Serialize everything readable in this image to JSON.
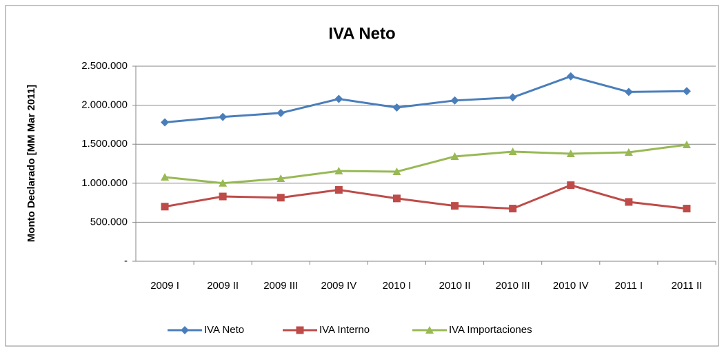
{
  "chart_data": {
    "type": "line",
    "title": "IVA Neto",
    "y_label": "Monto Declarado  [MM Mar 2011]",
    "categories": [
      "2009 I",
      "2009 II",
      "2009 III",
      "2009 IV",
      "2010 I",
      "2010 II",
      "2010 III",
      "2010 IV",
      "2011 I",
      "2011 II"
    ],
    "series": [
      {
        "name": "IVA Neto",
        "color": "#4a7ebb",
        "marker": "diamond",
        "values": [
          1780000,
          1850000,
          1900000,
          2080000,
          1970000,
          2060000,
          2100000,
          2370000,
          2170000,
          2180000
        ]
      },
      {
        "name": "IVA Interno",
        "color": "#be4b48",
        "marker": "square",
        "values": [
          700000,
          830000,
          815000,
          915000,
          805000,
          710000,
          675000,
          975000,
          760000,
          675000
        ]
      },
      {
        "name": "IVA Importaciones",
        "color": "#98b954",
        "marker": "triangle",
        "values": [
          1078000,
          1000000,
          1060000,
          1157000,
          1148000,
          1343000,
          1405000,
          1378000,
          1396000,
          1493000
        ]
      }
    ],
    "ylim": [
      0,
      2500000
    ],
    "yticks": [
      {
        "value": 0,
        "label": "-"
      },
      {
        "value": 500000,
        "label": "500.000"
      },
      {
        "value": 1000000,
        "label": "1.000.000"
      },
      {
        "value": 1500000,
        "label": "1.500.000"
      },
      {
        "value": 2000000,
        "label": "2.000.000"
      },
      {
        "value": 2500000,
        "label": "2.500.000"
      }
    ],
    "grid": true,
    "legend": "bottom"
  }
}
